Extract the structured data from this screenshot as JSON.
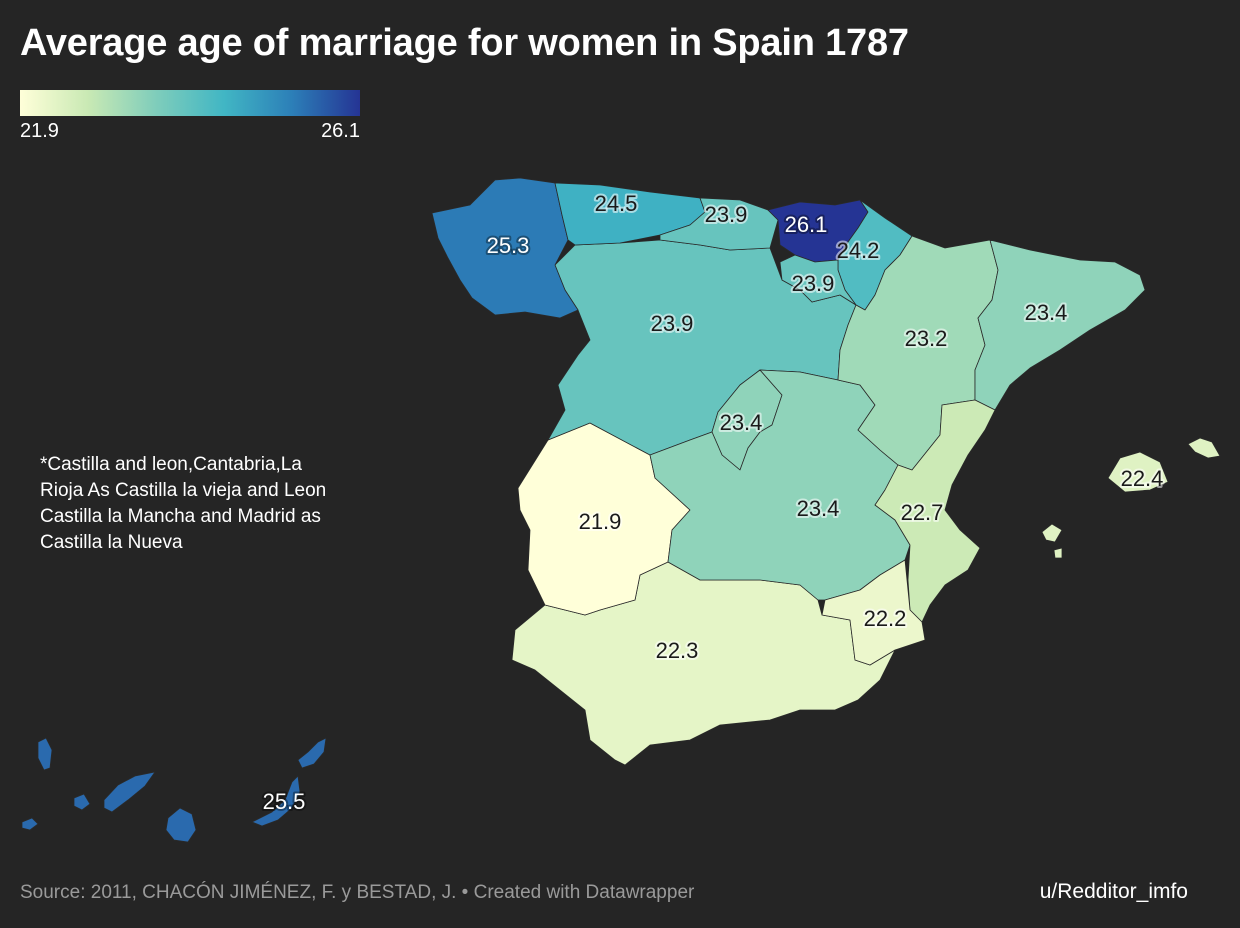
{
  "title": "Average age of marriage for women in Spain 1787",
  "legend": {
    "min_label": "21.9",
    "max_label": "26.1",
    "min_value": 21.9,
    "max_value": 26.1,
    "gradient": [
      "#ffffd9",
      "#c9e9b4",
      "#7fcdbb",
      "#41b6c4",
      "#2c7fb8",
      "#253494"
    ]
  },
  "note": "*Castilla and leon,Cantabria,La Rioja As Castilla la vieja and Leon Castilla la Mancha and Madrid as Castilla la Nueva",
  "regions": [
    {
      "name": "Galicia",
      "value": 25.3,
      "label": "25.3"
    },
    {
      "name": "Asturias",
      "value": 24.5,
      "label": "24.5"
    },
    {
      "name": "Cantabria",
      "value": 23.9,
      "label": "23.9"
    },
    {
      "name": "Basque Country",
      "value": 26.1,
      "label": "26.1"
    },
    {
      "name": "Navarra",
      "value": 24.2,
      "label": "24.2"
    },
    {
      "name": "La Rioja",
      "value": 23.9,
      "label": "23.9"
    },
    {
      "name": "Castilla y Leon",
      "value": 23.9,
      "label": "23.9"
    },
    {
      "name": "Aragon",
      "value": 23.2,
      "label": "23.2"
    },
    {
      "name": "Catalonia",
      "value": 23.4,
      "label": "23.4"
    },
    {
      "name": "Madrid",
      "value": 23.4,
      "label": "23.4"
    },
    {
      "name": "Castilla-La Mancha",
      "value": 23.4,
      "label": "23.4"
    },
    {
      "name": "Extremadura",
      "value": 21.9,
      "label": "21.9"
    },
    {
      "name": "Valencia",
      "value": 22.7,
      "label": "22.7"
    },
    {
      "name": "Murcia",
      "value": 22.2,
      "label": "22.2"
    },
    {
      "name": "Andalusia",
      "value": 22.3,
      "label": "22.3"
    },
    {
      "name": "Balearic Islands",
      "value": 22.4,
      "label": "22.4"
    },
    {
      "name": "Canary Islands",
      "value": 25.5,
      "label": "25.5"
    }
  ],
  "footer": {
    "source": "Source: 2011, CHACÓN JIMÉNEZ, F. y BESTAD, J. • Created with Datawrapper",
    "credit": "u/Redditor_imfo"
  }
}
